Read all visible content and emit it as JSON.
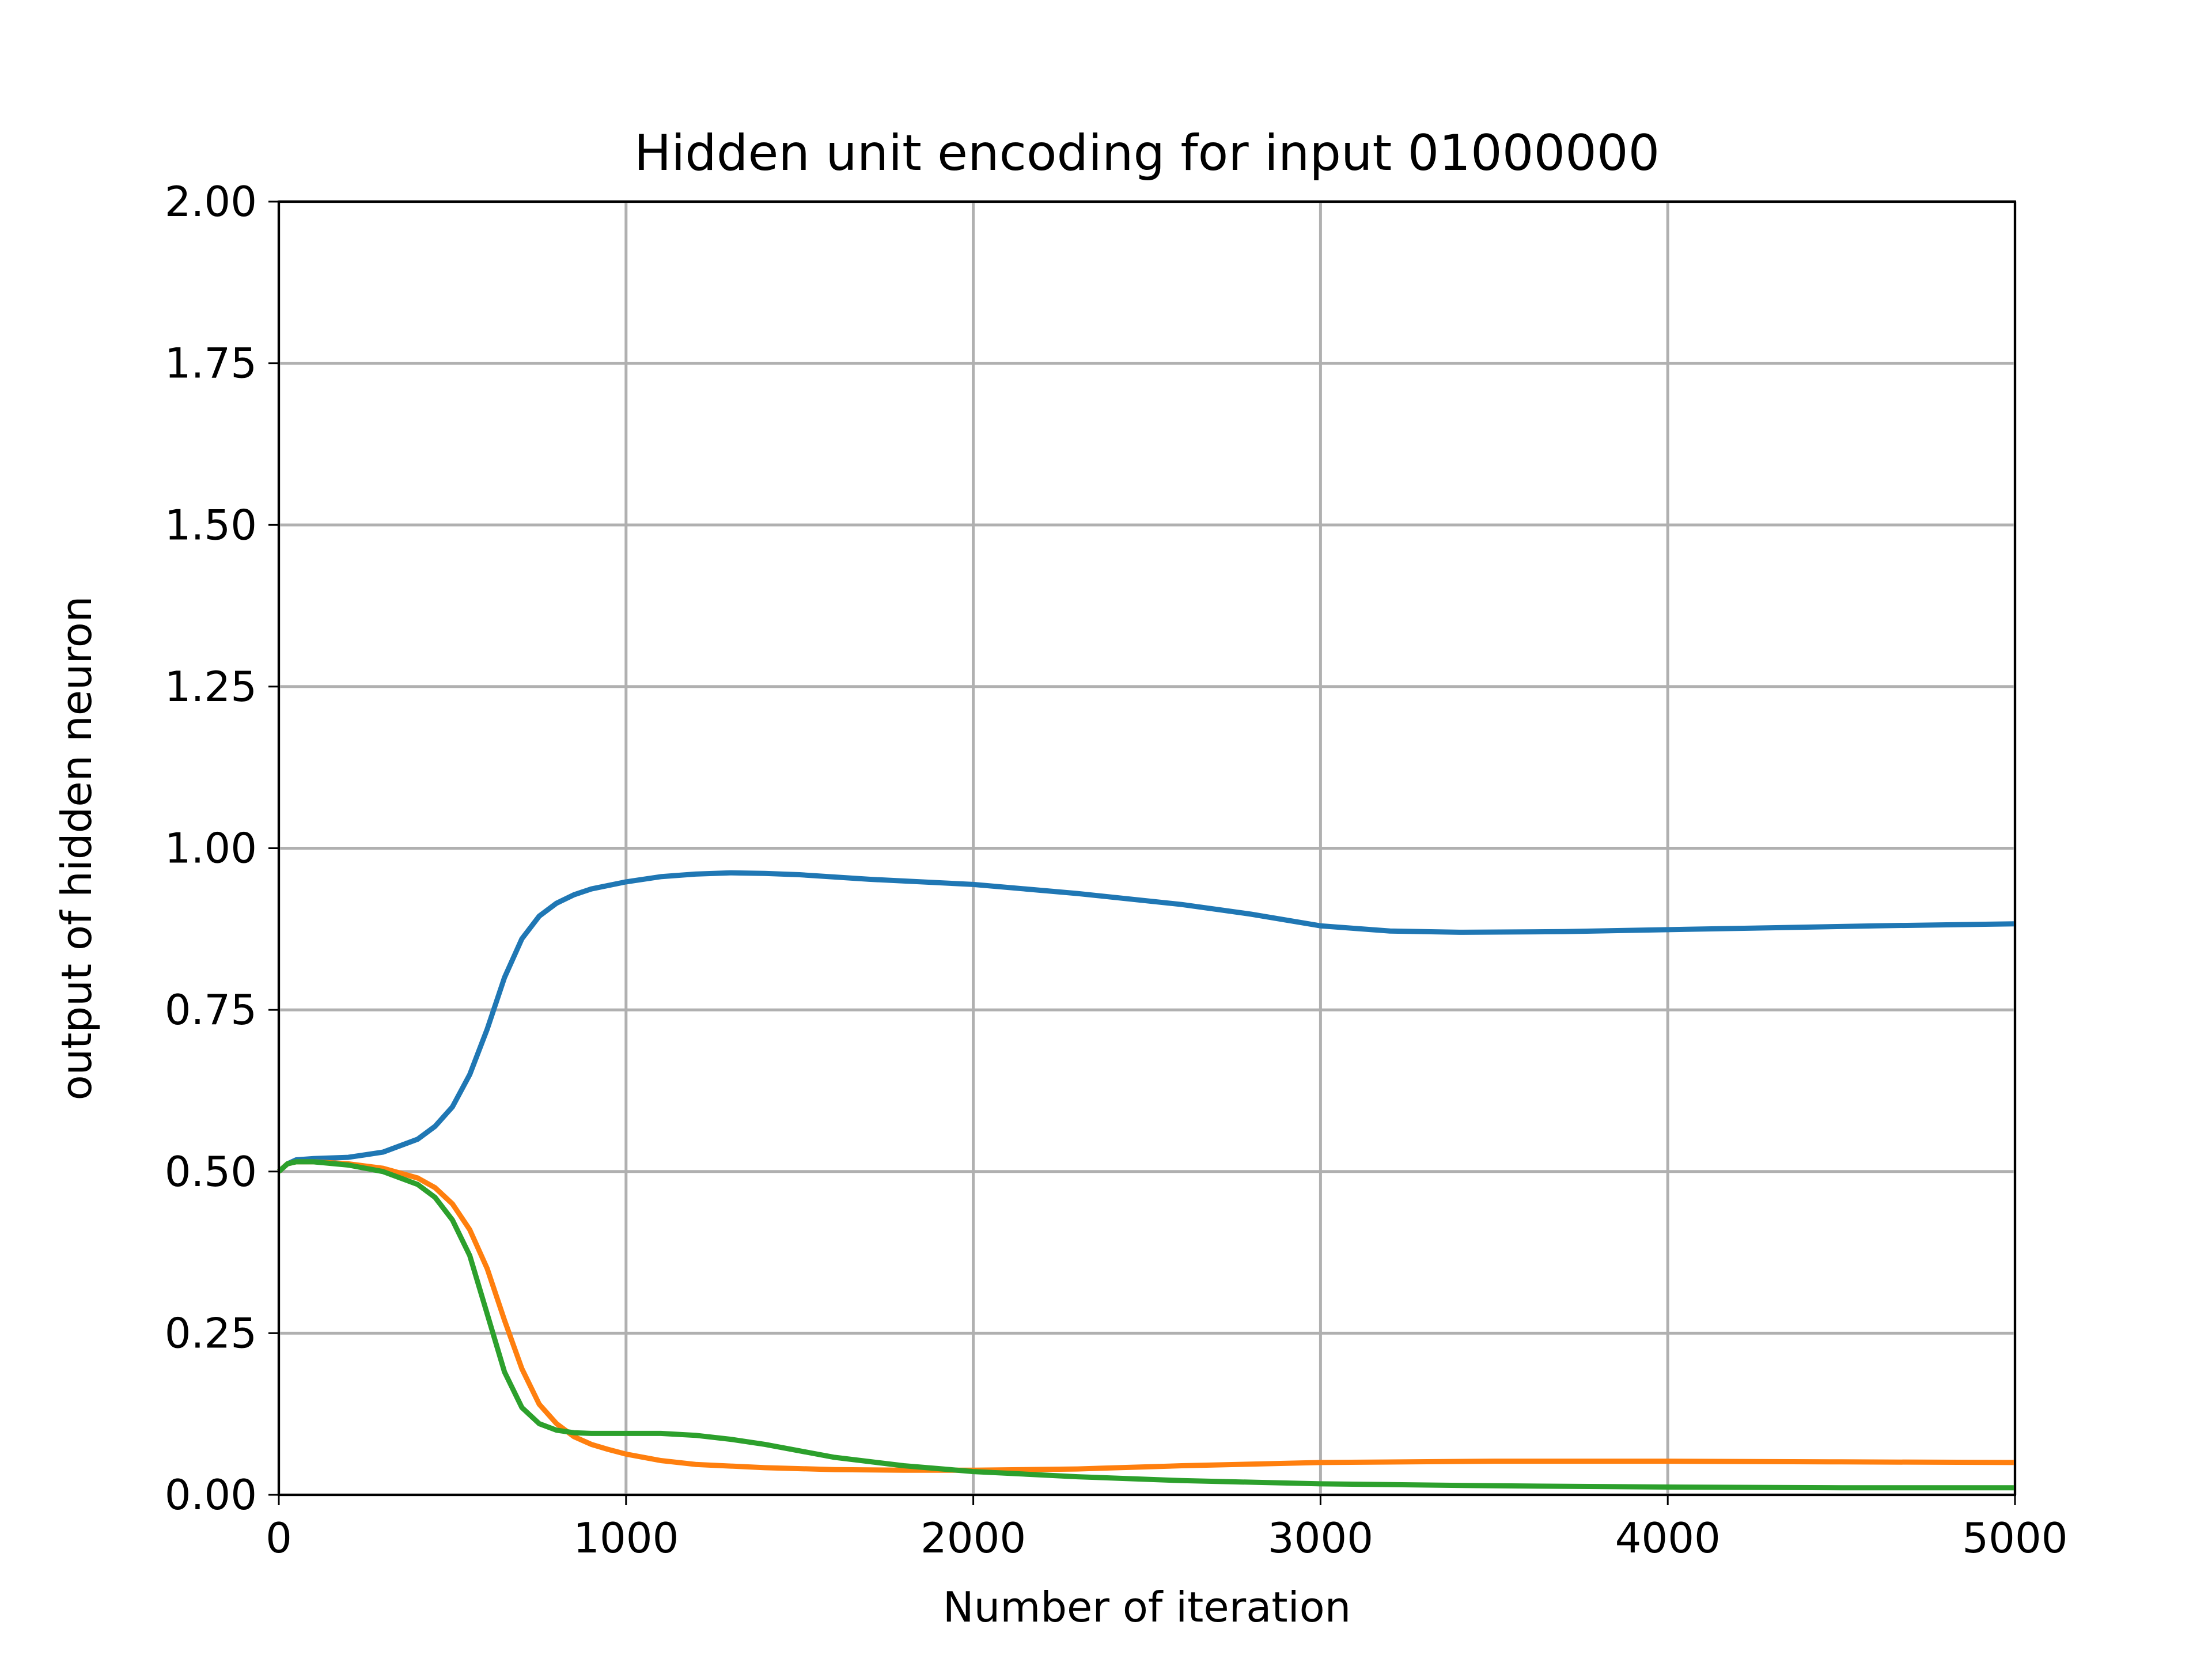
{
  "chart_data": {
    "type": "line",
    "title": "Hidden unit encoding for input 01000000",
    "xlabel": "Number of iteration",
    "ylabel": "output of hidden neuron",
    "xlim": [
      0,
      5000
    ],
    "ylim": [
      0,
      2
    ],
    "xticks": [
      0,
      1000,
      2000,
      3000,
      4000,
      5000
    ],
    "xtick_labels": [
      "0",
      "1000",
      "2000",
      "3000",
      "4000",
      "5000"
    ],
    "yticks": [
      0,
      0.25,
      0.5,
      0.75,
      1.0,
      1.25,
      1.5,
      1.75,
      2.0
    ],
    "ytick_labels": [
      "0.00",
      "0.25",
      "0.50",
      "0.75",
      "1.00",
      "1.25",
      "1.50",
      "1.75",
      "2.00"
    ],
    "grid": true,
    "legend": "none",
    "series": [
      {
        "color": "#1f77b4",
        "x": [
          0,
          25,
          50,
          100,
          200,
          300,
          400,
          450,
          500,
          550,
          600,
          650,
          700,
          750,
          800,
          850,
          900,
          1000,
          1100,
          1200,
          1300,
          1400,
          1500,
          1700,
          2000,
          2300,
          2600,
          2800,
          3000,
          3200,
          3400,
          3700,
          4000,
          4300,
          4600,
          5000
        ],
        "y": [
          0.5,
          0.512,
          0.518,
          0.52,
          0.522,
          0.53,
          0.55,
          0.57,
          0.6,
          0.65,
          0.72,
          0.8,
          0.86,
          0.895,
          0.915,
          0.928,
          0.937,
          0.948,
          0.956,
          0.96,
          0.962,
          0.961,
          0.959,
          0.952,
          0.944,
          0.93,
          0.913,
          0.898,
          0.88,
          0.872,
          0.87,
          0.871,
          0.874,
          0.877,
          0.88,
          0.883
        ]
      },
      {
        "color": "#ff7f0e",
        "x": [
          0,
          25,
          50,
          100,
          200,
          300,
          400,
          450,
          500,
          550,
          600,
          650,
          700,
          750,
          800,
          850,
          900,
          950,
          1000,
          1100,
          1200,
          1400,
          1600,
          1800,
          2000,
          2300,
          2600,
          3000,
          3500,
          4000,
          4500,
          5000
        ],
        "y": [
          0.5,
          0.512,
          0.515,
          0.515,
          0.512,
          0.505,
          0.49,
          0.475,
          0.45,
          0.41,
          0.35,
          0.27,
          0.195,
          0.14,
          0.11,
          0.09,
          0.078,
          0.07,
          0.063,
          0.053,
          0.047,
          0.042,
          0.039,
          0.038,
          0.038,
          0.04,
          0.045,
          0.05,
          0.052,
          0.052,
          0.051,
          0.05
        ]
      },
      {
        "color": "#2ca02c",
        "x": [
          0,
          25,
          50,
          100,
          200,
          300,
          400,
          450,
          500,
          550,
          600,
          650,
          700,
          750,
          800,
          850,
          900,
          1000,
          1100,
          1200,
          1300,
          1400,
          1500,
          1600,
          1800,
          2000,
          2300,
          2600,
          3000,
          3500,
          4000,
          4500,
          5000
        ],
        "y": [
          0.5,
          0.512,
          0.515,
          0.515,
          0.51,
          0.5,
          0.48,
          0.46,
          0.425,
          0.37,
          0.28,
          0.19,
          0.135,
          0.11,
          0.1,
          0.096,
          0.095,
          0.095,
          0.095,
          0.092,
          0.086,
          0.078,
          0.068,
          0.058,
          0.045,
          0.036,
          0.028,
          0.022,
          0.017,
          0.014,
          0.012,
          0.011,
          0.011
        ]
      }
    ]
  }
}
